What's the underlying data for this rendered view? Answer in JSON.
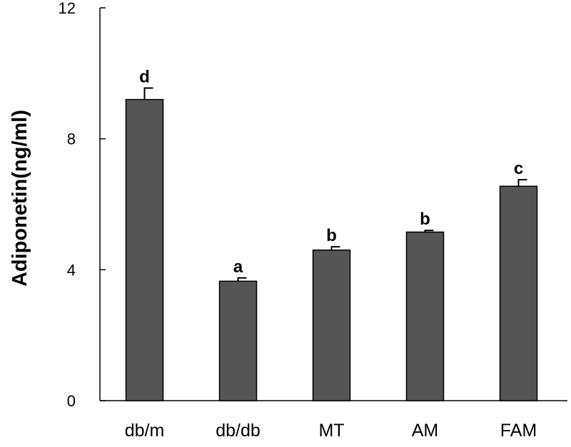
{
  "chart_data": {
    "type": "bar",
    "title": "",
    "xlabel": "",
    "ylabel": "Adiponetin(ng/ml)",
    "ylim": [
      0,
      12
    ],
    "yticks": [
      0,
      4,
      8,
      12
    ],
    "ytick_labels": [
      "0",
      "4",
      "8",
      "12"
    ],
    "categories": [
      "db/m",
      "db/db",
      "MT",
      "AM",
      "FAM"
    ],
    "values": [
      9.2,
      3.65,
      4.6,
      5.15,
      6.55
    ],
    "errors": [
      0.35,
      0.1,
      0.1,
      0.05,
      0.2
    ],
    "significance_labels": [
      "d",
      "a",
      "b",
      "b",
      "c"
    ],
    "bar_color": "#555555",
    "grid": false
  }
}
